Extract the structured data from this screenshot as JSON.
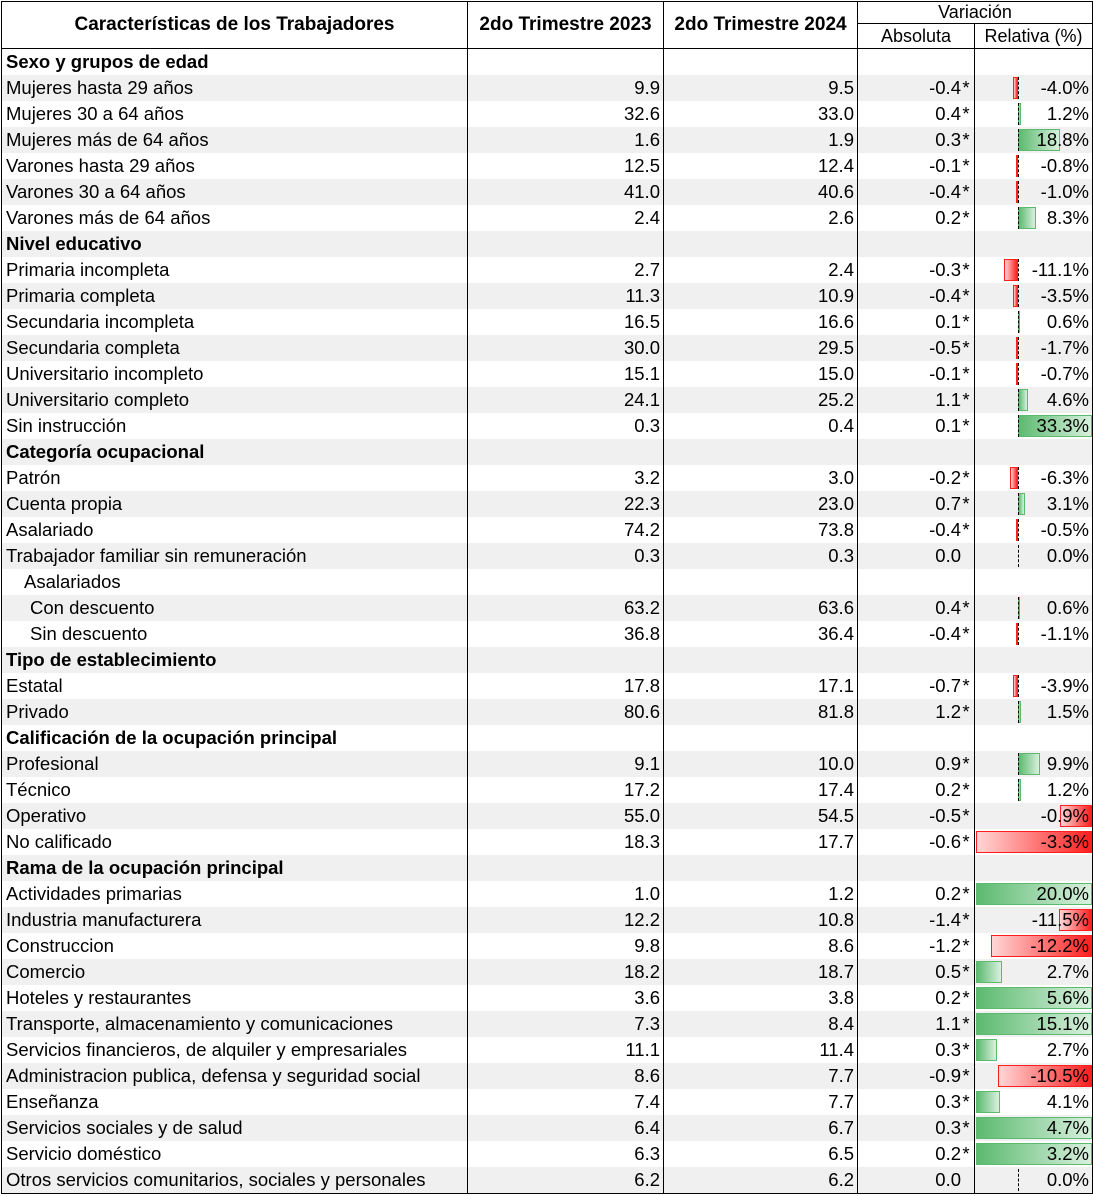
{
  "header": {
    "col_label": "Características de los Trabajadores",
    "col_2023": "2do Trimestre 2023",
    "col_2024": "2do Trimestre 2024",
    "col_variation": "Variación",
    "col_abs": "Absoluta",
    "col_rel": "Relativa (%)"
  },
  "colors": {
    "positive_bar": "#5cba6f",
    "negative_bar": "#ff1f1f",
    "stripe": "#f0f0f0"
  },
  "rows": [
    {
      "type": "section",
      "label": "Sexo y grupos de edad"
    },
    {
      "type": "data",
      "label": "Mujeres hasta 29 años",
      "v2023": "9.9",
      "v2024": "9.5",
      "abs": "-0.4",
      "ast": "*",
      "rel": "-4.0%",
      "relv": -4.0
    },
    {
      "type": "data",
      "label": "Mujeres 30 a 64 años",
      "v2023": "32.6",
      "v2024": "33.0",
      "abs": "0.4",
      "ast": "*",
      "rel": "1.2%",
      "relv": 1.2
    },
    {
      "type": "data",
      "label": "Mujeres más de 64 años",
      "v2023": "1.6",
      "v2024": "1.9",
      "abs": "0.3",
      "ast": "*",
      "rel": "18.8%",
      "relv": 18.8
    },
    {
      "type": "data",
      "label": "Varones hasta 29 años",
      "v2023": "12.5",
      "v2024": "12.4",
      "abs": "-0.1",
      "ast": "*",
      "rel": "-0.8%",
      "relv": -0.8
    },
    {
      "type": "data",
      "label": "Varones 30 a 64 años",
      "v2023": "41.0",
      "v2024": "40.6",
      "abs": "-0.4",
      "ast": "*",
      "rel": "-1.0%",
      "relv": -1.0
    },
    {
      "type": "data",
      "label": "Varones más de 64 años",
      "v2023": "2.4",
      "v2024": "2.6",
      "abs": "0.2",
      "ast": "*",
      "rel": "8.3%",
      "relv": 8.3
    },
    {
      "type": "section",
      "label": "Nivel educativo"
    },
    {
      "type": "data",
      "label": "Primaria incompleta",
      "v2023": "2.7",
      "v2024": "2.4",
      "abs": "-0.3",
      "ast": "*",
      "rel": "-11.1%",
      "relv": -11.1
    },
    {
      "type": "data",
      "label": "Primaria completa",
      "v2023": "11.3",
      "v2024": "10.9",
      "abs": "-0.4",
      "ast": "*",
      "rel": "-3.5%",
      "relv": -3.5
    },
    {
      "type": "data",
      "label": "Secundaria incompleta",
      "v2023": "16.5",
      "v2024": "16.6",
      "abs": "0.1",
      "ast": "*",
      "rel": "0.6%",
      "relv": 0.6
    },
    {
      "type": "data",
      "label": "Secundaria completa",
      "v2023": "30.0",
      "v2024": "29.5",
      "abs": "-0.5",
      "ast": "*",
      "rel": "-1.7%",
      "relv": -1.7
    },
    {
      "type": "data",
      "label": "Universitario incompleto",
      "v2023": "15.1",
      "v2024": "15.0",
      "abs": "-0.1",
      "ast": "*",
      "rel": "-0.7%",
      "relv": -0.7
    },
    {
      "type": "data",
      "label": "Universitario completo",
      "v2023": "24.1",
      "v2024": "25.2",
      "abs": "1.1",
      "ast": "*",
      "rel": "4.6%",
      "relv": 4.6
    },
    {
      "type": "data",
      "label": "Sin instrucción",
      "v2023": "0.3",
      "v2024": "0.4",
      "abs": "0.1",
      "ast": "*",
      "rel": "33.3%",
      "relv": 33.3
    },
    {
      "type": "section",
      "label": "Categoría ocupacional"
    },
    {
      "type": "data",
      "label": "Patrón",
      "v2023": "3.2",
      "v2024": "3.0",
      "abs": "-0.2",
      "ast": "*",
      "rel": "-6.3%",
      "relv": -6.3
    },
    {
      "type": "data",
      "label": "Cuenta propia",
      "v2023": "22.3",
      "v2024": "23.0",
      "abs": "0.7",
      "ast": "*",
      "rel": "3.1%",
      "relv": 3.1
    },
    {
      "type": "data",
      "label": "Asalariado",
      "v2023": "74.2",
      "v2024": "73.8",
      "abs": "-0.4",
      "ast": "*",
      "rel": "-0.5%",
      "relv": -0.5
    },
    {
      "type": "data",
      "label": "Trabajador familiar sin remuneración",
      "v2023": "0.3",
      "v2024": "0.3",
      "abs": "0.0",
      "ast": "",
      "rel": "0.0%",
      "relv": 0.0
    },
    {
      "type": "sub1",
      "label": "Asalariados"
    },
    {
      "type": "sub2",
      "label": "Con descuento",
      "v2023": "63.2",
      "v2024": "63.6",
      "abs": "0.4",
      "ast": "*",
      "rel": "0.6%",
      "relv": 0.6
    },
    {
      "type": "sub2",
      "label": "Sin descuento",
      "v2023": "36.8",
      "v2024": "36.4",
      "abs": "-0.4",
      "ast": "*",
      "rel": "-1.1%",
      "relv": -1.1
    },
    {
      "type": "section",
      "label": "Tipo de establecimiento"
    },
    {
      "type": "data",
      "label": "Estatal",
      "v2023": "17.8",
      "v2024": "17.1",
      "abs": "-0.7",
      "ast": "*",
      "rel": "-3.9%",
      "relv": -3.9
    },
    {
      "type": "data",
      "label": "Privado",
      "v2023": "80.6",
      "v2024": "81.8",
      "abs": "1.2",
      "ast": "*",
      "rel": "1.5%",
      "relv": 1.5
    },
    {
      "type": "section",
      "label": "Calificación de la ocupación principal"
    },
    {
      "type": "data",
      "label": "Profesional",
      "v2023": "9.1",
      "v2024": "10.0",
      "abs": "0.9",
      "ast": "*",
      "rel": "9.9%",
      "relv": 9.9
    },
    {
      "type": "data",
      "label": "Técnico",
      "v2023": "17.2",
      "v2024": "17.4",
      "abs": "0.2",
      "ast": "*",
      "rel": "1.2%",
      "relv": 1.2
    },
    {
      "type": "data",
      "label": "Operativo",
      "v2023": "55.0",
      "v2024": "54.5",
      "abs": "-0.5",
      "ast": "*",
      "rel": "-0.9%",
      "relv": -0.9,
      "scale": 3.3
    },
    {
      "type": "data",
      "label": "No calificado",
      "v2023": "18.3",
      "v2024": "17.7",
      "abs": "-0.6",
      "ast": "*",
      "rel": "-3.3%",
      "relv": -3.3,
      "scale": 3.3
    },
    {
      "type": "section",
      "label": "Rama de la ocupación principal"
    },
    {
      "type": "data",
      "label": "Actividades primarias",
      "v2023": "1.0",
      "v2024": "1.2",
      "abs": "0.2",
      "ast": "*",
      "rel": "20.0%",
      "relv": 20.0,
      "scale": 20
    },
    {
      "type": "data",
      "label": "Industria manufacturera",
      "v2023": "12.2",
      "v2024": "10.8",
      "abs": "-1.4",
      "ast": "*",
      "rel": "-11.5%",
      "relv": -11.5,
      "scale": 40
    },
    {
      "type": "data",
      "label": "Construccion",
      "v2023": "9.8",
      "v2024": "8.6",
      "abs": "-1.2",
      "ast": "*",
      "rel": "-12.2%",
      "relv": -12.2,
      "scale": 14
    },
    {
      "type": "data",
      "label": "Comercio",
      "v2023": "18.2",
      "v2024": "18.7",
      "abs": "0.5",
      "ast": "*",
      "rel": "2.7%",
      "relv": 2.7,
      "scale": 12
    },
    {
      "type": "data",
      "label": "Hoteles y restaurantes",
      "v2023": "3.6",
      "v2024": "3.8",
      "abs": "0.2",
      "ast": "*",
      "rel": "5.6%",
      "relv": 5.6,
      "scale": 5.6
    },
    {
      "type": "data",
      "label": "Transporte, almacenamiento y comunicaciones",
      "v2023": "7.3",
      "v2024": "8.4",
      "abs": "1.1",
      "ast": "*",
      "rel": "15.1%",
      "relv": 15.1,
      "scale": 15.1
    },
    {
      "type": "data",
      "label": "Servicios financieros, de alquiler y empresariales",
      "v2023": "11.1",
      "v2024": "11.4",
      "abs": "0.3",
      "ast": "*",
      "rel": "2.7%",
      "relv": 2.7,
      "scale": 15
    },
    {
      "type": "data",
      "label": "Administracion publica, defensa y seguridad social",
      "v2023": "8.6",
      "v2024": "7.7",
      "abs": "-0.9",
      "ast": "*",
      "rel": "-10.5%",
      "relv": -10.5,
      "scale": 13
    },
    {
      "type": "data",
      "label": "Enseñanza",
      "v2023": "7.4",
      "v2024": "7.7",
      "abs": "0.3",
      "ast": "*",
      "rel": "4.1%",
      "relv": 4.1,
      "scale": 20
    },
    {
      "type": "data",
      "label": "Servicios sociales y de salud",
      "v2023": "6.4",
      "v2024": "6.7",
      "abs": "0.3",
      "ast": "*",
      "rel": "4.7%",
      "relv": 4.7,
      "scale": 4.7
    },
    {
      "type": "data",
      "label": "Servicio doméstico",
      "v2023": "6.3",
      "v2024": "6.5",
      "abs": "0.2",
      "ast": "*",
      "rel": "3.2%",
      "relv": 3.2,
      "scale": 3.2
    },
    {
      "type": "data",
      "label": "Otros servicios comunitarios, sociales y personales",
      "v2023": "6.2",
      "v2024": "6.2",
      "abs": "0.0",
      "ast": "",
      "rel": "0.0%",
      "relv": 0.0
    }
  ]
}
